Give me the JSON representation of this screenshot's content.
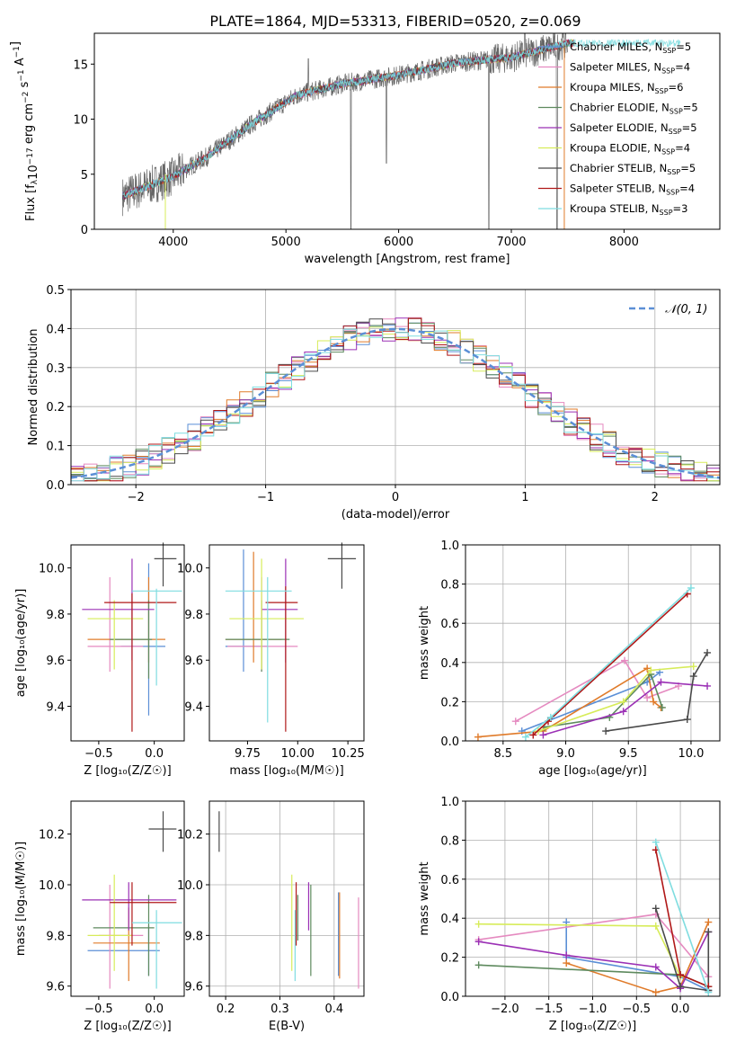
{
  "title": "PLATE=1864, MJD=53313, FIBERID=0520, z=0.069",
  "colors": {
    "c_miles": "#5b8fd6",
    "s_miles": "#e58ac0",
    "k_miles": "#e07b2a",
    "c_elodie": "#5e8a5e",
    "s_elodie": "#9b30b5",
    "k_elodie": "#d7ec5a",
    "c_stelib": "#4a4a4a",
    "s_stelib": "#b01818",
    "k_stelib": "#7fdde0",
    "data": "#666666"
  },
  "chart_data": [
    {
      "id": "spectrum",
      "type": "line",
      "xlabel": "wavelength [Angstrom, rest frame]",
      "ylabel": "Flux [f_λ10^-17 erg cm^-2 s^-1 A^-1]",
      "xlim": [
        3300,
        8850
      ],
      "ylim": [
        0,
        17.8
      ],
      "xticks": [
        "4000",
        "5000",
        "6000",
        "7000",
        "8000"
      ],
      "yticks": [
        "0",
        "5",
        "10",
        "15"
      ],
      "continuum": {
        "x": [
          3550,
          3700,
          4000,
          4300,
          4700,
          5100,
          5500,
          6000,
          6500,
          7000,
          7500
        ],
        "y": [
          3.0,
          3.6,
          4.8,
          6.6,
          9.6,
          12.2,
          13.2,
          14.0,
          15.1,
          15.6,
          16.9
        ]
      },
      "legend": [
        {
          "prefix": "Chabrier MILES, N",
          "sub": "SSP",
          "suffix": "=5",
          "color": "c_miles"
        },
        {
          "prefix": "Salpeter MILES, N",
          "sub": "SSP",
          "suffix": "=4",
          "color": "s_miles"
        },
        {
          "prefix": "Kroupa MILES, N",
          "sub": "SSP",
          "suffix": "=6",
          "color": "k_miles"
        },
        {
          "prefix": "Chabrier ELODIE, N",
          "sub": "SSP",
          "suffix": "=5",
          "color": "c_elodie"
        },
        {
          "prefix": "Salpeter ELODIE, N",
          "sub": "SSP",
          "suffix": "=5",
          "color": "s_elodie"
        },
        {
          "prefix": "Kroupa ELODIE, N",
          "sub": "SSP",
          "suffix": "=4",
          "color": "k_elodie"
        },
        {
          "prefix": "Chabrier STELIB, N",
          "sub": "SSP",
          "suffix": "=5",
          "color": "c_stelib"
        },
        {
          "prefix": "Salpeter STELIB, N",
          "sub": "SSP",
          "suffix": "=4",
          "color": "s_stelib"
        },
        {
          "prefix": "Kroupa STELIB, N",
          "sub": "SSP",
          "suffix": "=3",
          "color": "k_stelib"
        }
      ]
    },
    {
      "id": "residuals",
      "type": "line",
      "xlabel": "(data-model)/error",
      "ylabel": "Normed distribution",
      "xlim": [
        -2.5,
        2.5
      ],
      "ylim": [
        0,
        0.5
      ],
      "xticks": [
        "−2",
        "−1",
        "0",
        "1",
        "2"
      ],
      "yticks": [
        "0.0",
        "0.1",
        "0.2",
        "0.3",
        "0.4",
        "0.5"
      ],
      "legend_label": "𝒩(0, 1)",
      "legend_loc": "upper right",
      "reference_curve": "standard normal"
    },
    {
      "id": "age_vs_Z",
      "type": "scatter",
      "xlabel": "Z [log₁₀(Z/Z☉)]",
      "ylabel": "age  [log₁₀(age/yr)]",
      "xlim": [
        -0.75,
        0.27
      ],
      "ylim": [
        9.25,
        10.1
      ],
      "xticks": [
        "−0.5",
        "0.0"
      ],
      "xtickvals": [
        -0.5,
        0.0
      ],
      "yticks": [
        "9.4",
        "9.6",
        "9.8",
        "10.0"
      ],
      "ytickvals": [
        9.4,
        9.6,
        9.8,
        10.0
      ],
      "points": [
        {
          "c": "c_miles",
          "x": -0.05,
          "y": 9.66,
          "xe": [
            -0.3,
            0.1
          ],
          "ye": [
            9.36,
            10.02
          ]
        },
        {
          "c": "s_miles",
          "x": -0.4,
          "y": 9.66,
          "xe": [
            -0.6,
            -0.1
          ],
          "ye": [
            9.55,
            9.96
          ]
        },
        {
          "c": "k_miles",
          "x": -0.05,
          "y": 9.69,
          "xe": [
            -0.6,
            0.1
          ],
          "ye": [
            9.59,
            9.96
          ]
        },
        {
          "c": "c_elodie",
          "x": -0.05,
          "y": 9.69,
          "xe": [
            -0.4,
            -0.02
          ],
          "ye": [
            9.52,
            9.86
          ]
        },
        {
          "c": "s_elodie",
          "x": -0.2,
          "y": 9.82,
          "xe": [
            -0.65,
            0.0
          ],
          "ye": [
            9.6,
            10.04
          ]
        },
        {
          "c": "k_elodie",
          "x": -0.36,
          "y": 9.78,
          "xe": [
            -0.6,
            -0.1
          ],
          "ye": [
            9.56,
            9.86
          ]
        },
        {
          "c": "c_stelib",
          "x": 0.08,
          "y": 10.04,
          "xe": [
            0.0,
            0.2
          ],
          "ye": [
            9.92,
            10.11
          ]
        },
        {
          "c": "s_stelib",
          "x": -0.2,
          "y": 9.85,
          "xe": [
            -0.45,
            0.2
          ],
          "ye": [
            9.29,
            9.89
          ]
        },
        {
          "c": "k_stelib",
          "x": 0.02,
          "y": 9.9,
          "xe": [
            -0.2,
            0.25
          ],
          "ye": [
            9.49,
            9.91
          ]
        }
      ]
    },
    {
      "id": "age_vs_mass",
      "type": "scatter",
      "xlabel": "mass [log₁₀(M/M☉)]",
      "ylabel": "",
      "xlim": [
        9.56,
        10.33
      ],
      "ylim": [
        9.25,
        10.1
      ],
      "xticks": [
        "9.75",
        "10.00",
        "10.25"
      ],
      "xtickvals": [
        9.75,
        10.0,
        10.25
      ],
      "yticks": [
        "9.4",
        "9.6",
        "9.8",
        "10.0"
      ],
      "ytickvals": [
        9.4,
        9.6,
        9.8,
        10.0
      ],
      "points": [
        {
          "c": "c_miles",
          "x": 9.73,
          "y": 9.66,
          "xe": [
            9.64,
            9.85
          ],
          "ye": [
            9.55,
            10.08
          ]
        },
        {
          "c": "s_miles",
          "x": 9.82,
          "y": 9.66,
          "xe": [
            9.65,
            10.0
          ],
          "ye": [
            9.55,
            9.96
          ]
        },
        {
          "c": "k_miles",
          "x": 9.78,
          "y": 9.69,
          "xe": [
            9.64,
            9.92
          ],
          "ye": [
            9.59,
            10.07
          ]
        },
        {
          "c": "c_elodie",
          "x": 9.82,
          "y": 9.69,
          "xe": [
            9.64,
            9.96
          ],
          "ye": [
            9.55,
            9.86
          ]
        },
        {
          "c": "s_elodie",
          "x": 9.94,
          "y": 9.82,
          "xe": [
            9.82,
            10.0
          ],
          "ye": [
            9.59,
            10.04
          ]
        },
        {
          "c": "k_elodie",
          "x": 9.82,
          "y": 9.78,
          "xe": [
            9.66,
            10.03
          ],
          "ye": [
            9.56,
            10.04
          ]
        },
        {
          "c": "c_stelib",
          "x": 10.22,
          "y": 10.04,
          "xe": [
            10.15,
            10.29
          ],
          "ye": [
            9.91,
            10.11
          ]
        },
        {
          "c": "s_stelib",
          "x": 9.94,
          "y": 9.85,
          "xe": [
            9.84,
            10.0
          ],
          "ye": [
            9.29,
            9.92
          ]
        },
        {
          "c": "k_stelib",
          "x": 9.85,
          "y": 9.9,
          "xe": [
            9.64,
            9.97
          ],
          "ye": [
            9.33,
            9.96
          ]
        }
      ]
    },
    {
      "id": "weights_vs_age",
      "type": "line",
      "xlabel": "age  [log₁₀(age/yr)]",
      "ylabel": "mass weight",
      "xlim": [
        8.2,
        10.23
      ],
      "ylim": [
        0,
        1.0
      ],
      "xticks": [
        "8.5",
        "9.0",
        "9.5",
        "10.0"
      ],
      "xtickvals": [
        8.5,
        9.0,
        9.5,
        10.0
      ],
      "yticks": [
        "0.0",
        "0.2",
        "0.4",
        "0.6",
        "0.8",
        "1.0"
      ],
      "ytickvals": [
        0,
        0.2,
        0.4,
        0.6,
        0.8,
        1.0
      ],
      "series": [
        {
          "c": "c_miles",
          "x": [
            8.65,
            9.65,
            9.75
          ],
          "y": [
            0.05,
            0.3,
            0.35
          ]
        },
        {
          "c": "s_miles",
          "x": [
            8.6,
            9.47,
            9.65,
            9.9
          ],
          "y": [
            0.1,
            0.41,
            0.22,
            0.28
          ]
        },
        {
          "c": "k_miles",
          "x": [
            8.3,
            8.82,
            9.65,
            9.7,
            9.76
          ],
          "y": [
            0.02,
            0.05,
            0.37,
            0.2,
            0.17
          ]
        },
        {
          "c": "c_elodie",
          "x": [
            8.83,
            9.35,
            9.68,
            9.77
          ],
          "y": [
            0.07,
            0.12,
            0.34,
            0.17
          ]
        },
        {
          "c": "s_elodie",
          "x": [
            8.82,
            9.46,
            9.76,
            10.13
          ],
          "y": [
            0.03,
            0.15,
            0.3,
            0.28
          ]
        },
        {
          "c": "k_elodie",
          "x": [
            8.78,
            9.46,
            9.68,
            10.02
          ],
          "y": [
            0.05,
            0.2,
            0.36,
            0.38
          ]
        },
        {
          "c": "c_stelib",
          "x": [
            9.32,
            9.97,
            10.02,
            10.13
          ],
          "y": [
            0.05,
            0.11,
            0.33,
            0.45
          ]
        },
        {
          "c": "s_stelib",
          "x": [
            8.74,
            8.86,
            9.97
          ],
          "y": [
            0.03,
            0.1,
            0.75
          ]
        },
        {
          "c": "k_stelib",
          "x": [
            8.68,
            8.88,
            10.0
          ],
          "y": [
            0.02,
            0.12,
            0.78
          ]
        }
      ]
    },
    {
      "id": "mass_vs_Z",
      "type": "scatter",
      "xlabel": "Z [log₁₀(Z/Z☉)]",
      "ylabel": "mass [log₁₀(M/M☉)]",
      "xlim": [
        -0.75,
        0.27
      ],
      "ylim": [
        9.56,
        10.33
      ],
      "xticks": [
        "−0.5",
        "0.0"
      ],
      "xtickvals": [
        -0.5,
        0.0
      ],
      "yticks": [
        "9.6",
        "9.8",
        "10.0",
        "10.2"
      ],
      "ytickvals": [
        9.6,
        9.8,
        10.0,
        10.2
      ],
      "points": [
        {
          "c": "c_miles",
          "x": -0.05,
          "y": 9.74,
          "xe": [
            -0.6,
            0.05
          ],
          "ye": [
            9.64,
            9.84
          ]
        },
        {
          "c": "s_miles",
          "x": -0.4,
          "y": 9.8,
          "xe": [
            -0.5,
            -0.1
          ],
          "ye": [
            9.59,
            10.0
          ]
        },
        {
          "c": "k_miles",
          "x": -0.23,
          "y": 9.77,
          "xe": [
            -0.55,
            0.05
          ],
          "ye": [
            9.62,
            9.91
          ]
        },
        {
          "c": "c_elodie",
          "x": -0.05,
          "y": 9.83,
          "xe": [
            -0.55,
            0.0
          ],
          "ye": [
            9.64,
            9.96
          ]
        },
        {
          "c": "s_elodie",
          "x": -0.23,
          "y": 9.94,
          "xe": [
            -0.65,
            0.2
          ],
          "ye": [
            9.82,
            10.01
          ]
        },
        {
          "c": "k_elodie",
          "x": -0.36,
          "y": 9.8,
          "xe": [
            -0.6,
            -0.2
          ],
          "ye": [
            9.66,
            10.04
          ]
        },
        {
          "c": "c_stelib",
          "x": 0.08,
          "y": 10.22,
          "xe": [
            -0.05,
            0.2
          ],
          "ye": [
            10.13,
            10.29
          ]
        },
        {
          "c": "s_stelib",
          "x": -0.2,
          "y": 9.93,
          "xe": [
            -0.4,
            0.2
          ],
          "ye": [
            9.76,
            10.01
          ]
        },
        {
          "c": "k_stelib",
          "x": 0.02,
          "y": 9.85,
          "xe": [
            -0.2,
            0.25
          ],
          "ye": [
            9.59,
            9.9
          ]
        }
      ]
    },
    {
      "id": "mass_vs_EBV",
      "type": "scatter",
      "xlabel": "E(B-V)",
      "ylabel": "",
      "xlim": [
        0.17,
        0.455
      ],
      "ylim": [
        9.56,
        10.33
      ],
      "xticks": [
        "0.2",
        "0.3",
        "0.4"
      ],
      "xtickvals": [
        0.2,
        0.3,
        0.4
      ],
      "yticks": [
        "9.6",
        "9.8",
        "10.0",
        "10.2"
      ],
      "ytickvals": [
        9.6,
        9.8,
        10.0,
        10.2
      ],
      "segments": [
        {
          "c": "c_stelib",
          "x": 0.188,
          "y0": 10.13,
          "y1": 10.29
        },
        {
          "c": "k_elodie",
          "x": 0.322,
          "y0": 9.66,
          "y1": 10.04
        },
        {
          "c": "k_stelib",
          "x": 0.328,
          "y0": 9.62,
          "y1": 9.9
        },
        {
          "c": "c_elodie",
          "x": 0.333,
          "y0": 9.78,
          "y1": 9.96
        },
        {
          "c": "s_stelib",
          "x": 0.33,
          "y0": 9.76,
          "y1": 10.01
        },
        {
          "c": "s_elodie",
          "x": 0.353,
          "y0": 9.82,
          "y1": 10.01
        },
        {
          "c": "c_elodie",
          "x": 0.357,
          "y0": 9.64,
          "y1": 10.0
        },
        {
          "c": "c_miles",
          "x": 0.408,
          "y0": 9.64,
          "y1": 9.97
        },
        {
          "c": "k_miles",
          "x": 0.41,
          "y0": 9.63,
          "y1": 9.97
        },
        {
          "c": "s_miles",
          "x": 0.445,
          "y0": 9.59,
          "y1": 9.95
        }
      ]
    },
    {
      "id": "weights_vs_Z",
      "type": "line",
      "xlabel": "Z [log₁₀(Z/Z☉)]",
      "ylabel": "mass weight",
      "xlim": [
        -2.45,
        0.45
      ],
      "ylim": [
        0,
        1.0
      ],
      "xticks": [
        "−2.0",
        "−1.5",
        "−1.0",
        "−0.5",
        "0.0"
      ],
      "xtickvals": [
        -2.0,
        -1.5,
        -1.0,
        -0.5,
        0.0
      ],
      "yticks": [
        "0.0",
        "0.2",
        "0.4",
        "0.6",
        "0.8",
        "1.0"
      ],
      "ytickvals": [
        0,
        0.2,
        0.4,
        0.6,
        0.8,
        1.0
      ],
      "series": [
        {
          "c": "c_miles",
          "x": [
            -1.3,
            -1.3,
            0.0,
            0.32
          ],
          "y": [
            0.38,
            0.2,
            0.1,
            0.03
          ]
        },
        {
          "c": "s_miles",
          "x": [
            -2.3,
            -0.28,
            0.32
          ],
          "y": [
            0.29,
            0.42,
            0.1
          ]
        },
        {
          "c": "k_miles",
          "x": [
            -1.3,
            -0.28,
            0.0,
            0.32
          ],
          "y": [
            0.17,
            0.02,
            0.05,
            0.38
          ]
        },
        {
          "c": "c_elodie",
          "x": [
            -2.3,
            0.0,
            0.32
          ],
          "y": [
            0.16,
            0.11,
            0.05
          ]
        },
        {
          "c": "s_elodie",
          "x": [
            -2.3,
            -1.3,
            -0.28,
            0.0,
            0.32
          ],
          "y": [
            0.28,
            0.21,
            0.15,
            0.04,
            0.33
          ]
        },
        {
          "c": "k_elodie",
          "x": [
            -2.3,
            -0.28,
            0.0
          ],
          "y": [
            0.37,
            0.36,
            0.1
          ]
        },
        {
          "c": "c_stelib",
          "x": [
            -0.28,
            0.0,
            0.32,
            0.32
          ],
          "y": [
            0.45,
            0.05,
            0.03,
            0.33
          ]
        },
        {
          "c": "s_stelib",
          "x": [
            -0.28,
            0.0,
            0.32
          ],
          "y": [
            0.75,
            0.11,
            0.05
          ]
        },
        {
          "c": "k_stelib",
          "x": [
            -0.28,
            0.32
          ],
          "y": [
            0.79,
            0.02
          ]
        }
      ]
    }
  ]
}
